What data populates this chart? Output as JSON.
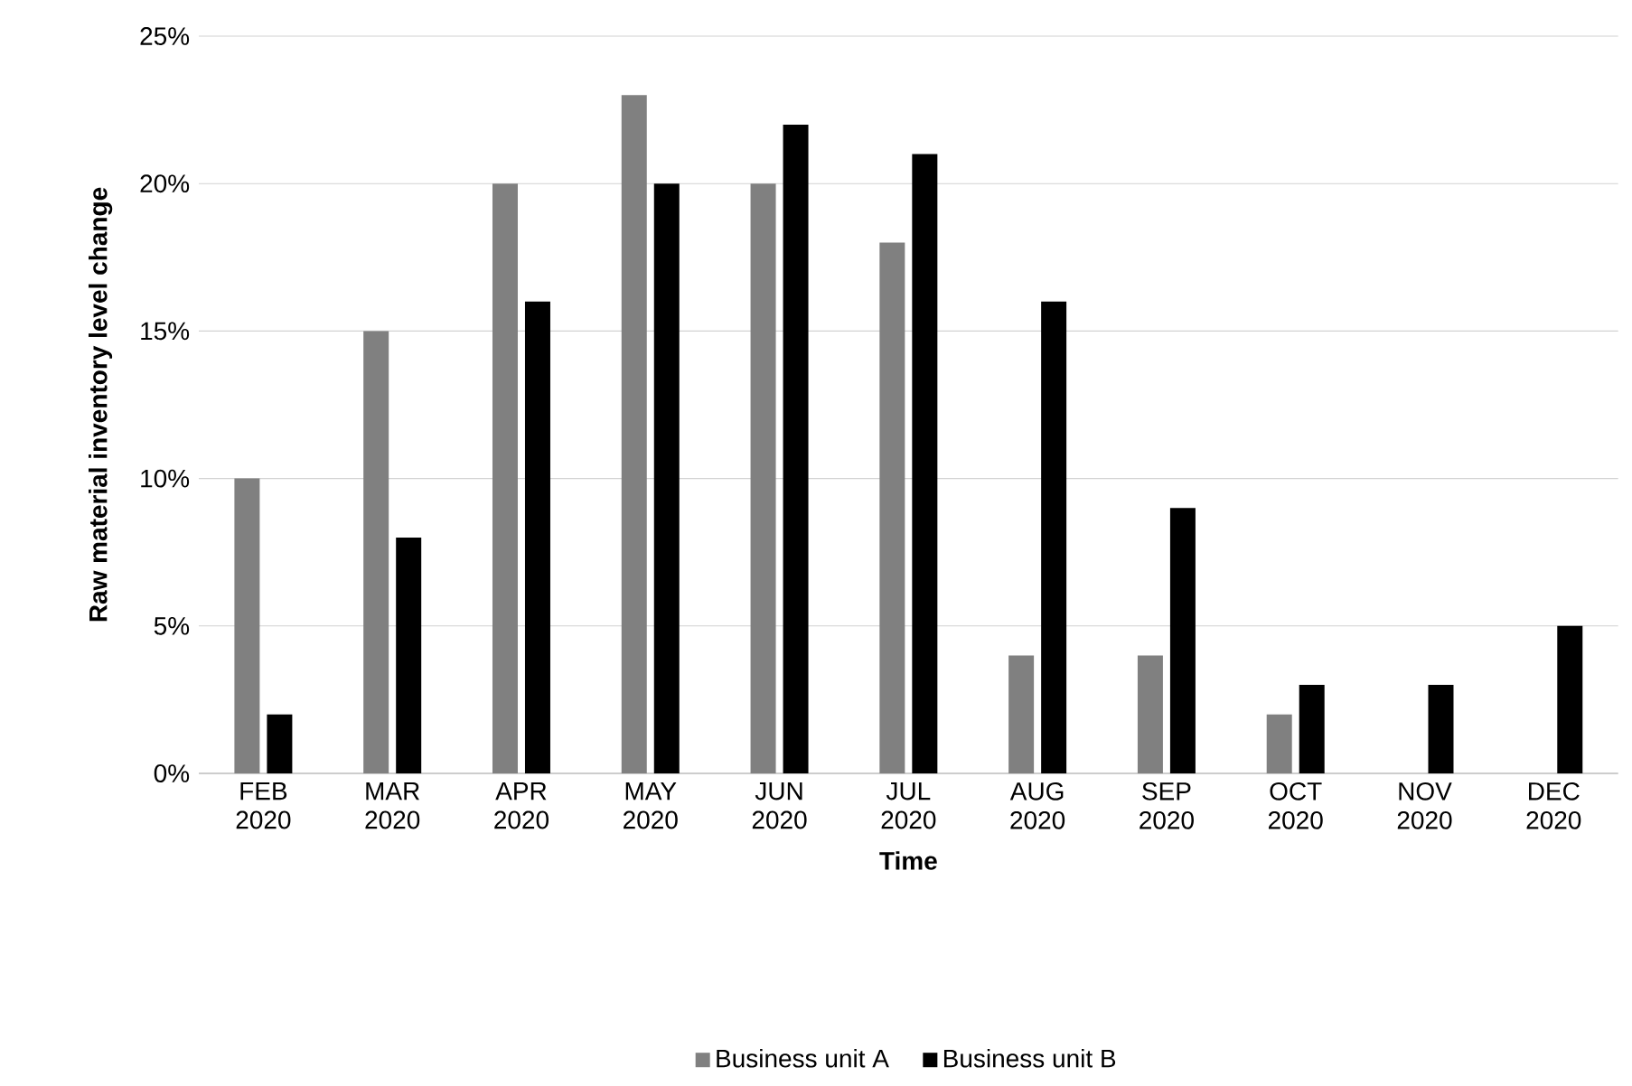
{
  "chart_data": {
    "type": "bar",
    "xlabel": "Time",
    "ylabel": "Raw material inventory level change",
    "categories": [
      "FEB 2020",
      "MAR 2020",
      "APR 2020",
      "MAY 2020",
      "JUN 2020",
      "JUL 2020",
      "AUG 2020",
      "SEP 2020",
      "OCT 2020",
      "NOV 2020",
      "DEC 2020"
    ],
    "series": [
      {
        "name": "Business unit A",
        "color": "#808080",
        "values": [
          10,
          15,
          20,
          23,
          20,
          18,
          4,
          4,
          2,
          null,
          null
        ]
      },
      {
        "name": "Business unit B",
        "color": "#000000",
        "values": [
          2,
          8,
          16,
          20,
          22,
          21,
          16,
          9,
          3,
          3,
          5
        ]
      }
    ],
    "ylim": [
      0,
      25
    ],
    "yticks": [
      {
        "value": 0,
        "label": "0%"
      },
      {
        "value": 5,
        "label": "5%"
      },
      {
        "value": 10,
        "label": "10%"
      },
      {
        "value": 15,
        "label": "15%"
      },
      {
        "value": 20,
        "label": "20%"
      },
      {
        "value": 25,
        "label": "25%"
      }
    ],
    "grid": "y",
    "legend": "bottom"
  }
}
